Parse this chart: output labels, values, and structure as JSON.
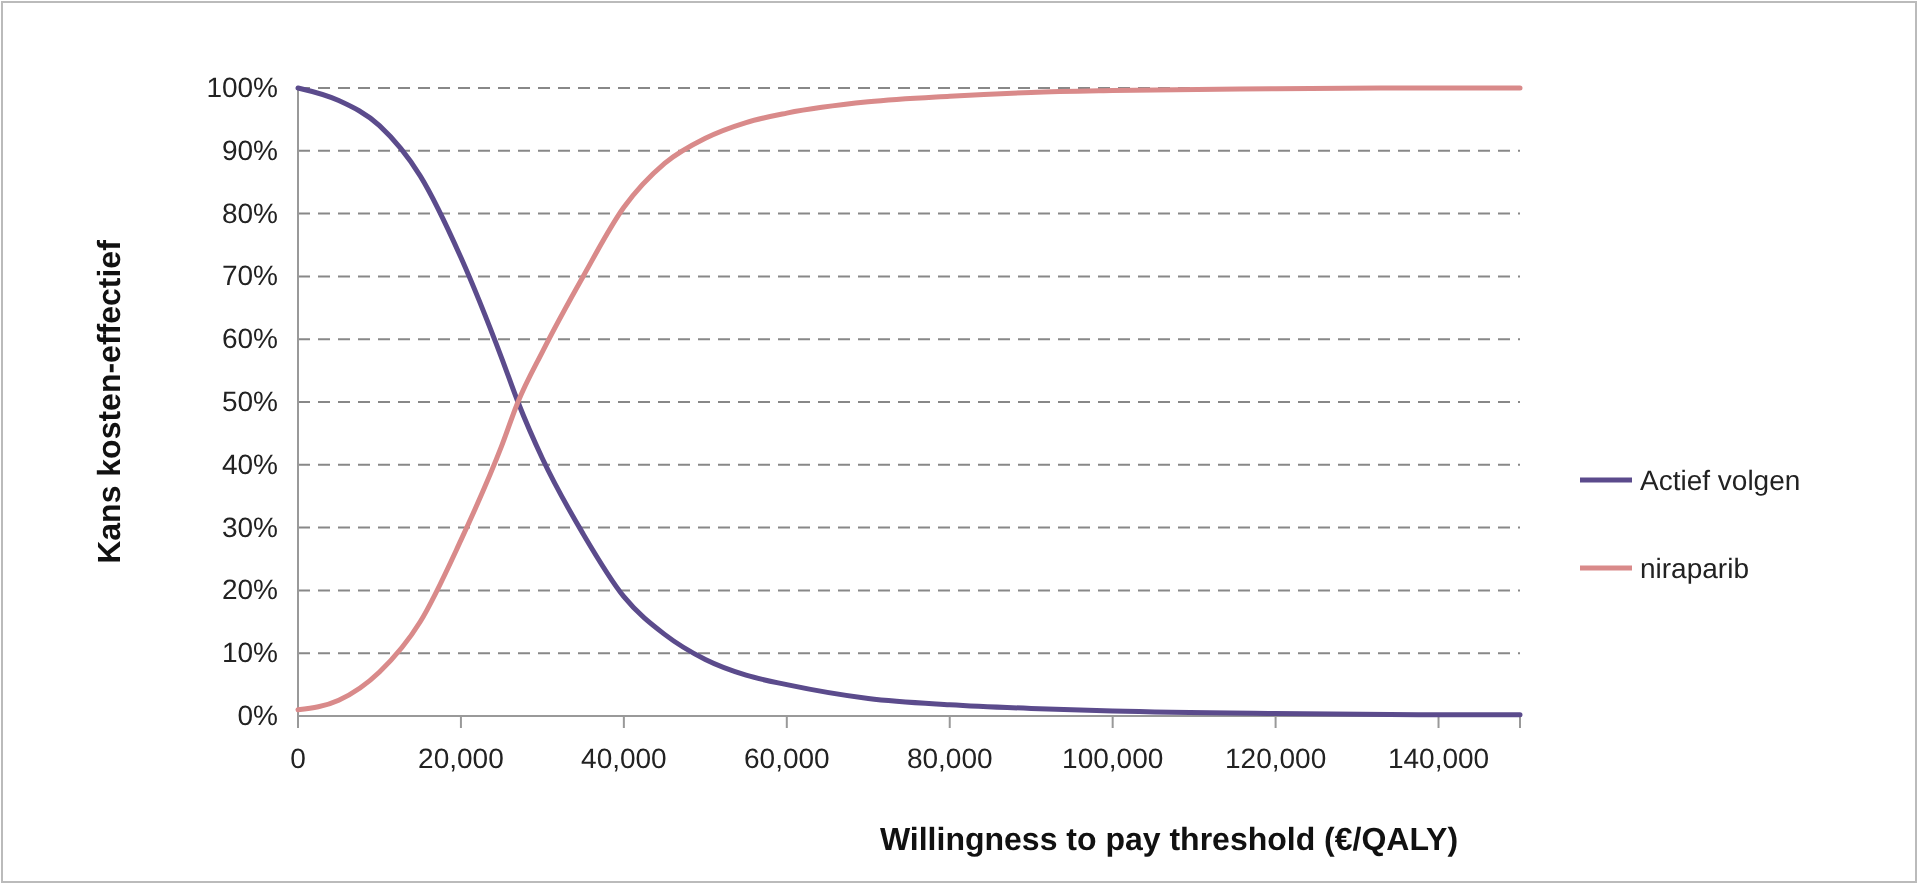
{
  "chart_data": {
    "type": "line",
    "xlabel": "Willingness to pay threshold (€/QALY)",
    "ylabel": "Kans kosten-effectief",
    "x": [
      0,
      5000,
      10000,
      15000,
      20000,
      25000,
      27000,
      30000,
      35000,
      40000,
      45000,
      50000,
      55000,
      60000,
      70000,
      80000,
      90000,
      100000,
      120000,
      140000,
      150000
    ],
    "series": [
      {
        "name": "Actief volgen",
        "color": "#5b4b8c",
        "values": [
          100,
          98,
          94,
          86,
          73,
          57,
          50,
          41,
          29,
          19,
          13,
          9,
          6.5,
          5,
          2.8,
          1.8,
          1.2,
          0.8,
          0.4,
          0.2,
          0.2
        ]
      },
      {
        "name": "niraparib",
        "color": "#d98a8a",
        "values": [
          1,
          2.5,
          7,
          15,
          28,
          43,
          50,
          58,
          70,
          81,
          88,
          92,
          94.5,
          96,
          97.8,
          98.7,
          99.3,
          99.6,
          99.9,
          100,
          100
        ]
      }
    ],
    "xlim": [
      0,
      150000
    ],
    "xticks": [
      {
        "value": 0,
        "label": "0"
      },
      {
        "value": 20000,
        "label": "20,000"
      },
      {
        "value": 40000,
        "label": "40,000"
      },
      {
        "value": 60000,
        "label": "60,000"
      },
      {
        "value": 80000,
        "label": "80,000"
      },
      {
        "value": 100000,
        "label": "100,000"
      },
      {
        "value": 120000,
        "label": "120,000"
      },
      {
        "value": 140000,
        "label": "140,000"
      }
    ],
    "ylim": [
      0,
      100
    ],
    "yticks": [
      {
        "value": 0,
        "label": "0%"
      },
      {
        "value": 10,
        "label": "10%"
      },
      {
        "value": 20,
        "label": "20%"
      },
      {
        "value": 30,
        "label": "30%"
      },
      {
        "value": 40,
        "label": "40%"
      },
      {
        "value": 50,
        "label": "50%"
      },
      {
        "value": 60,
        "label": "60%"
      },
      {
        "value": 70,
        "label": "70%"
      },
      {
        "value": 80,
        "label": "80%"
      },
      {
        "value": 90,
        "label": "90%"
      },
      {
        "value": 100,
        "label": "100%"
      }
    ],
    "grid": "y",
    "legend": "right",
    "marker": "none",
    "line_style": "solid"
  }
}
